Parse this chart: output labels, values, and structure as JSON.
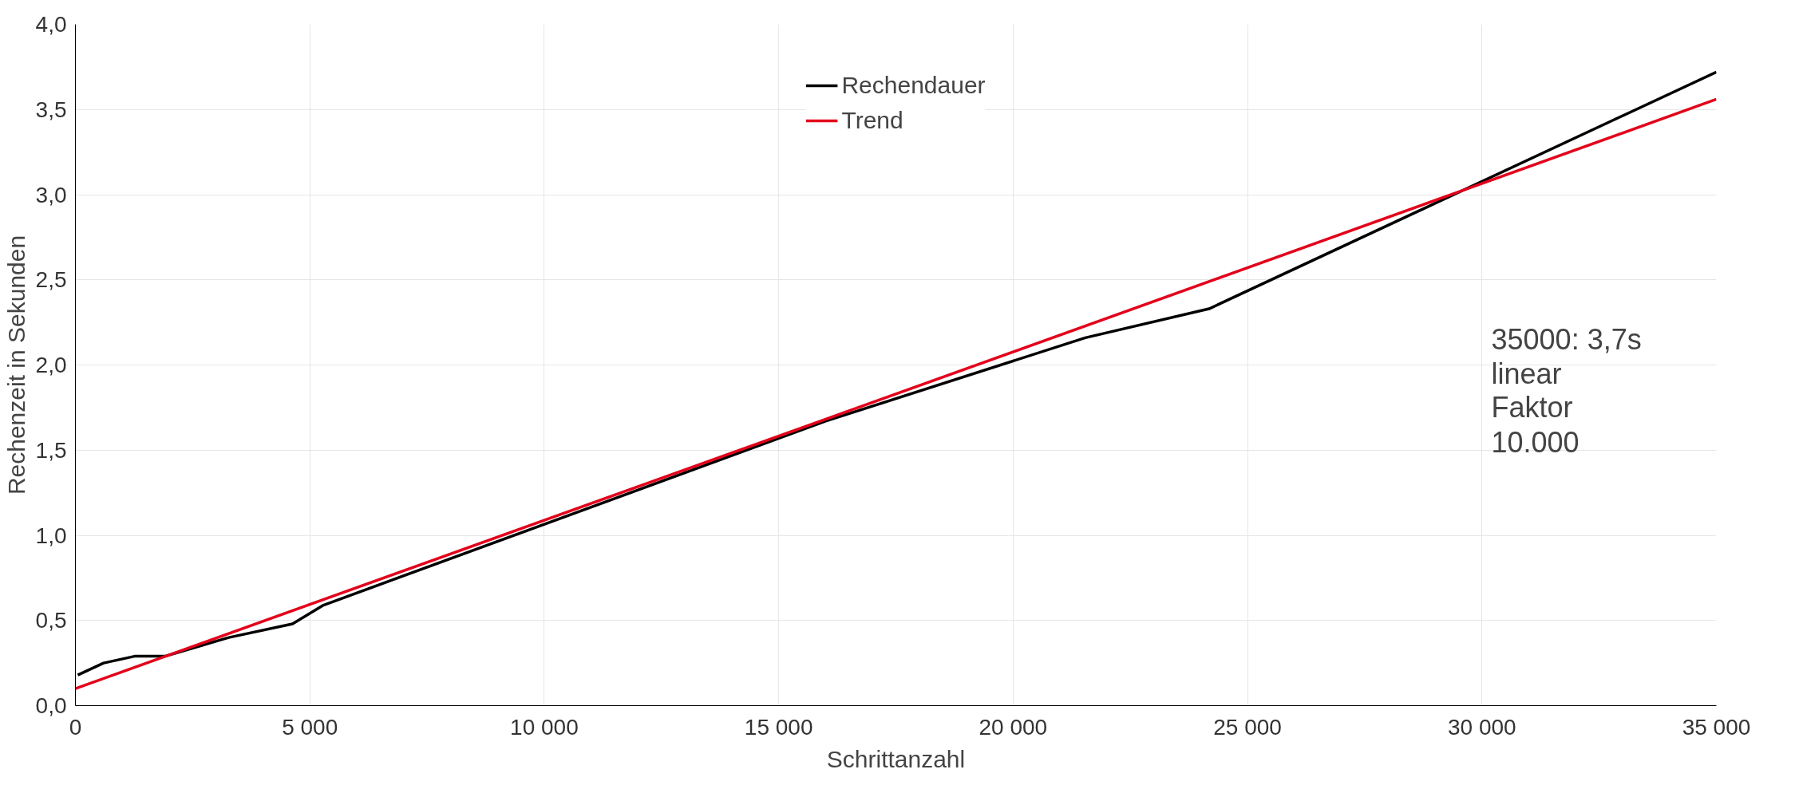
{
  "chart_data": {
    "type": "line",
    "xlabel": "Schrittanzahl",
    "ylabel": "Rechenzeit in Sekunden",
    "series": [
      {
        "name": "Rechendauer",
        "color": "#000000",
        "x": [
          50,
          600,
          1260,
          1910,
          3270,
          4630,
          5290,
          16000,
          21540,
          24180,
          35000
        ],
        "values": [
          0.18,
          0.25,
          0.29,
          0.29,
          0.4,
          0.48,
          0.59,
          1.67,
          2.16,
          2.33,
          3.72
        ]
      },
      {
        "name": "Trend",
        "color": "#e3001b",
        "x": [
          0,
          35000
        ],
        "values": [
          0.1,
          3.56
        ]
      }
    ],
    "xlim": [
      0,
      35000
    ],
    "ylim": [
      0,
      4
    ],
    "xticks": [
      0,
      {
        "value": 5000,
        "label": "5 000"
      },
      {
        "value": 10000,
        "label": "10 000"
      },
      {
        "value": 15000,
        "label": "15 000"
      },
      {
        "value": 20000,
        "label": "20 000"
      },
      {
        "value": 25000,
        "label": "25 000"
      },
      {
        "value": 30000,
        "label": "30 000"
      },
      {
        "value": 35000,
        "label": "35 000"
      }
    ],
    "yticks": [
      {
        "value": 0,
        "label": "0,0"
      },
      {
        "value": 0.5,
        "label": "0,5"
      },
      {
        "value": 1,
        "label": "1,0"
      },
      {
        "value": 1.5,
        "label": "1,5"
      },
      {
        "value": 2,
        "label": "2,0"
      },
      {
        "value": 2.5,
        "label": "2,5"
      },
      {
        "value": 3,
        "label": "3,0"
      },
      {
        "value": 3.5,
        "label": "3,5"
      },
      {
        "value": 4,
        "label": "4,0"
      }
    ],
    "grid": true,
    "legend": "top",
    "line_style": "solid",
    "marker": "none",
    "annotations": [
      "35000: 3,7s\nlinear\nFaktor\n10.000"
    ]
  }
}
